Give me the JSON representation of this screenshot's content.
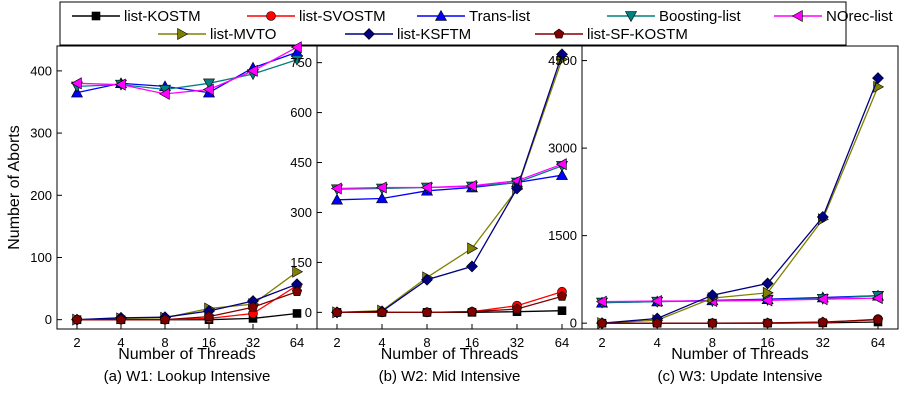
{
  "legend": [
    {
      "name": "list-KOSTM",
      "color": "#000000",
      "marker": "square"
    },
    {
      "name": "list-SVOSTM",
      "color": "#ff0000",
      "marker": "circle"
    },
    {
      "name": "Trans-list",
      "color": "#0000ff",
      "marker": "triangle-up"
    },
    {
      "name": "Boosting-list",
      "color": "#008080",
      "marker": "triangle-down"
    },
    {
      "name": "NOrec-list",
      "color": "#ff00ff",
      "marker": "triangle-left"
    },
    {
      "name": "list-MVTO",
      "color": "#808000",
      "marker": "triangle-right"
    },
    {
      "name": "list-KSFTM",
      "color": "#000080",
      "marker": "diamond"
    },
    {
      "name": "list-SF-KOSTM",
      "color": "#800000",
      "marker": "pentagon"
    }
  ],
  "chart_data": [
    {
      "type": "line",
      "caption": "(a) W1: Lookup Intensive",
      "xlabel": "Number of Threads",
      "ylabel": "Number of Aborts",
      "categories": [
        "2",
        "4",
        "8",
        "16",
        "32",
        "64"
      ],
      "ylim": [
        -15,
        440
      ],
      "yticks": [
        0,
        100,
        200,
        300,
        400
      ],
      "grid": false,
      "series": [
        {
          "name": "list-KOSTM",
          "values": [
            0,
            0,
            0,
            0,
            2,
            10
          ]
        },
        {
          "name": "list-SVOSTM",
          "values": [
            0,
            0,
            0,
            2,
            10,
            55
          ]
        },
        {
          "name": "Trans-list",
          "values": [
            365,
            380,
            375,
            365,
            405,
            430
          ]
        },
        {
          "name": "Boosting-list",
          "values": [
            375,
            378,
            370,
            380,
            395,
            418
          ]
        },
        {
          "name": "NOrec-list",
          "values": [
            380,
            378,
            363,
            370,
            400,
            438
          ]
        },
        {
          "name": "list-MVTO",
          "values": [
            0,
            2,
            3,
            18,
            25,
            77
          ]
        },
        {
          "name": "list-KSFTM",
          "values": [
            0,
            3,
            4,
            14,
            30,
            57
          ]
        },
        {
          "name": "list-SF-KOSTM",
          "values": [
            0,
            0,
            0,
            5,
            20,
            45
          ]
        }
      ]
    },
    {
      "type": "line",
      "caption": "(b) W2: Mid Intensive",
      "xlabel": "Number of Threads",
      "ylabel": "",
      "categories": [
        "2",
        "4",
        "8",
        "16",
        "32",
        "64"
      ],
      "ylim": [
        -50,
        800
      ],
      "yticks": [
        0,
        150,
        300,
        450,
        600,
        750
      ],
      "grid": false,
      "series": [
        {
          "name": "list-KOSTM",
          "values": [
            0,
            0,
            0,
            0,
            2,
            5
          ]
        },
        {
          "name": "list-SVOSTM",
          "values": [
            0,
            0,
            0,
            2,
            20,
            62
          ]
        },
        {
          "name": "Trans-list",
          "values": [
            338,
            342,
            365,
            375,
            390,
            412
          ]
        },
        {
          "name": "Boosting-list",
          "values": [
            370,
            372,
            375,
            378,
            390,
            440
          ]
        },
        {
          "name": "NOrec-list",
          "values": [
            372,
            375,
            375,
            380,
            395,
            445
          ]
        },
        {
          "name": "list-MVTO",
          "values": [
            0,
            5,
            105,
            192,
            370,
            760
          ]
        },
        {
          "name": "list-KSFTM",
          "values": [
            0,
            3,
            98,
            138,
            372,
            775
          ]
        },
        {
          "name": "list-SF-KOSTM",
          "values": [
            0,
            0,
            0,
            2,
            10,
            48
          ]
        }
      ]
    },
    {
      "type": "line",
      "caption": "(c) W3: Update Intensive",
      "xlabel": "Number of Threads",
      "ylabel": "",
      "categories": [
        "2",
        "4",
        "8",
        "16",
        "32",
        "64"
      ],
      "ylim": [
        -100,
        4750
      ],
      "yticks": [
        0,
        1500,
        3000,
        4500
      ],
      "grid": false,
      "series": [
        {
          "name": "list-KOSTM",
          "values": [
            0,
            0,
            0,
            0,
            5,
            20
          ]
        },
        {
          "name": "list-SVOSTM",
          "values": [
            0,
            0,
            0,
            0,
            10,
            70
          ]
        },
        {
          "name": "Trans-list",
          "values": [
            350,
            370,
            390,
            410,
            440,
            470
          ]
        },
        {
          "name": "Boosting-list",
          "values": [
            355,
            370,
            380,
            400,
            420,
            470
          ]
        },
        {
          "name": "NOrec-list",
          "values": [
            370,
            380,
            380,
            390,
            410,
            430
          ]
        },
        {
          "name": "list-MVTO",
          "values": [
            0,
            50,
            430,
            520,
            1780,
            4050
          ]
        },
        {
          "name": "list-KSFTM",
          "values": [
            0,
            80,
            480,
            680,
            1820,
            4200
          ]
        },
        {
          "name": "list-SF-KOSTM",
          "values": [
            0,
            0,
            0,
            5,
            20,
            60
          ]
        }
      ]
    }
  ]
}
